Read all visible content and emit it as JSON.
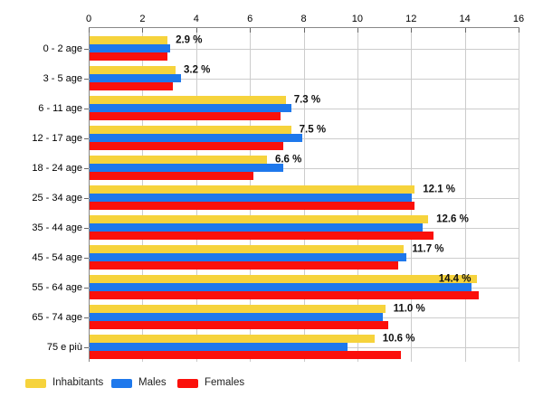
{
  "chart_data": {
    "type": "bar",
    "orientation": "horizontal",
    "title": "",
    "x_axis": {
      "min": 0,
      "max": 16,
      "ticks": [
        0,
        2,
        4,
        6,
        8,
        10,
        12,
        14,
        16
      ],
      "position": "top"
    },
    "grid": true,
    "categories": [
      "0 - 2 age",
      "3 - 5 age",
      "6 - 11 age",
      "12 - 17 age",
      "18 - 24 age",
      "25 - 34 age",
      "35 - 44 age",
      "45 - 54 age",
      "55 - 64 age",
      "65 - 74 age",
      "75 e più"
    ],
    "series": [
      {
        "name": "Inhabitants",
        "color": "#F6D33C",
        "values": [
          2.9,
          3.2,
          7.3,
          7.5,
          6.6,
          12.1,
          12.6,
          11.7,
          14.4,
          11.0,
          10.6
        ]
      },
      {
        "name": "Males",
        "color": "#1E78EC",
        "values": [
          3.0,
          3.4,
          7.5,
          7.9,
          7.2,
          12.0,
          12.4,
          11.8,
          14.2,
          10.9,
          9.6
        ]
      },
      {
        "name": "Females",
        "color": "#FB100B",
        "values": [
          2.9,
          3.1,
          7.1,
          7.2,
          6.1,
          12.1,
          12.8,
          11.5,
          14.5,
          11.1,
          11.6
        ]
      }
    ],
    "value_labels": [
      "2.9 %",
      "3.2 %",
      "7.3 %",
      "7.5 %",
      "6.6 %",
      "12.1 %",
      "12.6 %",
      "11.7 %",
      "14.4 %",
      "11.0 %",
      "10.6 %"
    ],
    "legend": {
      "position": "bottom-left",
      "items": [
        "Inhabitants",
        "Males",
        "Females"
      ]
    }
  },
  "colors": {
    "grid": "#CCCCCC",
    "axis": "#888888",
    "tick_mark": "#666666",
    "category_tick": "#666666",
    "axis_text": "#000000",
    "value_label_text": "#111111",
    "background": "#FFFFFF"
  }
}
